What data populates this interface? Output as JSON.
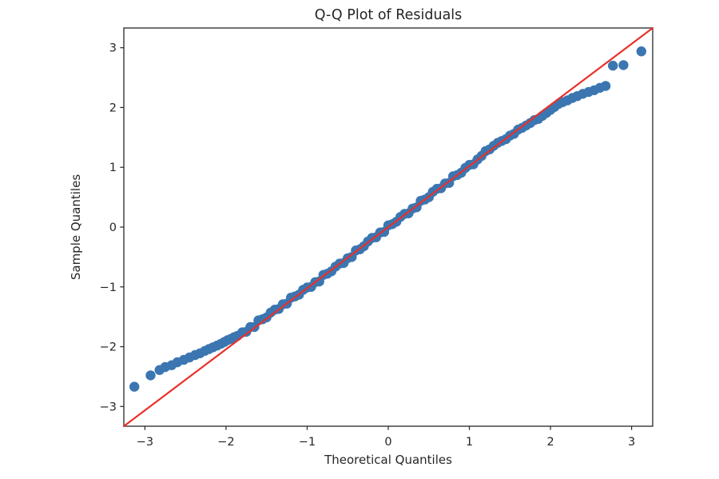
{
  "chart_data": {
    "type": "scatter",
    "title": "Q-Q Plot of Residuals",
    "xlabel": "Theoretical Quantiles",
    "ylabel": "Sample Quantiles",
    "xlim": [
      -3.26,
      3.26
    ],
    "ylim": [
      -3.33,
      3.33
    ],
    "x_ticks": [
      -3,
      -2,
      -1,
      0,
      1,
      2,
      3
    ],
    "x_tick_labels": [
      "−3",
      "−2",
      "−1",
      "0",
      "1",
      "2",
      "3"
    ],
    "y_ticks": [
      -3,
      -2,
      -1,
      0,
      1,
      2,
      3
    ],
    "y_tick_labels": [
      "−3",
      "−2",
      "−1",
      "0",
      "1",
      "2",
      "3"
    ],
    "grid": false,
    "legend": "none",
    "colors": {
      "scatter": "#3b76b1",
      "reference_line": "#e8312b",
      "text": "#262626",
      "spine": "#262626",
      "background": "#ffffff"
    },
    "series": [
      {
        "name": "residual-sample-quantiles",
        "type": "scatter",
        "marker": "circle",
        "color": "#3b76b1",
        "points": [
          [
            -3.13,
            -2.67
          ],
          [
            -2.93,
            -2.48
          ],
          [
            -2.82,
            -2.39
          ],
          [
            -2.75,
            -2.34
          ],
          [
            -2.67,
            -2.31
          ],
          [
            -2.6,
            -2.26
          ],
          [
            -2.52,
            -2.22
          ],
          [
            -2.45,
            -2.18
          ],
          [
            -2.38,
            -2.14
          ],
          [
            -2.32,
            -2.11
          ],
          [
            -2.26,
            -2.07
          ],
          [
            -2.21,
            -2.04
          ],
          [
            -2.16,
            -2.01
          ],
          [
            -2.11,
            -1.98
          ],
          [
            -2.06,
            -1.95
          ],
          [
            -2.02,
            -1.92
          ],
          [
            -1.98,
            -1.89
          ],
          [
            -1.94,
            -1.87
          ],
          [
            -1.9,
            -1.84
          ],
          [
            -1.86,
            -1.82
          ],
          [
            -1.8,
            -1.76
          ],
          [
            -1.75,
            -1.75
          ],
          [
            -1.7,
            -1.67
          ],
          [
            -1.65,
            -1.67
          ],
          [
            -1.6,
            -1.56
          ],
          [
            -1.55,
            -1.54
          ],
          [
            -1.5,
            -1.51
          ],
          [
            -1.45,
            -1.43
          ],
          [
            -1.4,
            -1.38
          ],
          [
            -1.35,
            -1.37
          ],
          [
            -1.3,
            -1.29
          ],
          [
            -1.25,
            -1.28
          ],
          [
            -1.2,
            -1.18
          ],
          [
            -1.15,
            -1.16
          ],
          [
            -1.1,
            -1.13
          ],
          [
            -1.05,
            -1.05
          ],
          [
            -1.0,
            -1.01
          ],
          [
            -0.95,
            -1.0
          ],
          [
            -0.9,
            -0.92
          ],
          [
            -0.85,
            -0.91
          ],
          [
            -0.8,
            -0.8
          ],
          [
            -0.75,
            -0.78
          ],
          [
            -0.7,
            -0.74
          ],
          [
            -0.65,
            -0.66
          ],
          [
            -0.6,
            -0.61
          ],
          [
            -0.55,
            -0.6
          ],
          [
            -0.5,
            -0.52
          ],
          [
            -0.45,
            -0.5
          ],
          [
            -0.4,
            -0.39
          ],
          [
            -0.35,
            -0.37
          ],
          [
            -0.3,
            -0.32
          ],
          [
            -0.25,
            -0.24
          ],
          [
            -0.2,
            -0.18
          ],
          [
            -0.15,
            -0.17
          ],
          [
            -0.1,
            -0.09
          ],
          [
            -0.05,
            -0.08
          ],
          [
            0.0,
            0.03
          ],
          [
            0.05,
            0.05
          ],
          [
            0.1,
            0.09
          ],
          [
            0.15,
            0.17
          ],
          [
            0.2,
            0.22
          ],
          [
            0.25,
            0.23
          ],
          [
            0.3,
            0.31
          ],
          [
            0.35,
            0.33
          ],
          [
            0.4,
            0.44
          ],
          [
            0.45,
            0.46
          ],
          [
            0.5,
            0.5
          ],
          [
            0.55,
            0.59
          ],
          [
            0.6,
            0.64
          ],
          [
            0.65,
            0.65
          ],
          [
            0.7,
            0.73
          ],
          [
            0.75,
            0.74
          ],
          [
            0.8,
            0.85
          ],
          [
            0.85,
            0.87
          ],
          [
            0.9,
            0.91
          ],
          [
            0.95,
            0.99
          ],
          [
            1.0,
            1.04
          ],
          [
            1.05,
            1.05
          ],
          [
            1.1,
            1.13
          ],
          [
            1.15,
            1.19
          ],
          [
            1.2,
            1.27
          ],
          [
            1.25,
            1.3
          ],
          [
            1.3,
            1.36
          ],
          [
            1.35,
            1.41
          ],
          [
            1.4,
            1.44
          ],
          [
            1.45,
            1.47
          ],
          [
            1.5,
            1.53
          ],
          [
            1.55,
            1.56
          ],
          [
            1.6,
            1.63
          ],
          [
            1.65,
            1.66
          ],
          [
            1.7,
            1.7
          ],
          [
            1.75,
            1.74
          ],
          [
            1.8,
            1.79
          ],
          [
            1.85,
            1.81
          ],
          [
            1.9,
            1.86
          ],
          [
            1.95,
            1.91
          ],
          [
            2.0,
            1.96
          ],
          [
            2.05,
            2.01
          ],
          [
            2.1,
            2.06
          ],
          [
            2.15,
            2.09
          ],
          [
            2.21,
            2.12
          ],
          [
            2.27,
            2.16
          ],
          [
            2.33,
            2.19
          ],
          [
            2.4,
            2.23
          ],
          [
            2.47,
            2.26
          ],
          [
            2.54,
            2.29
          ],
          [
            2.61,
            2.33
          ],
          [
            2.68,
            2.36
          ],
          [
            2.77,
            2.7
          ],
          [
            2.9,
            2.71
          ],
          [
            3.12,
            2.94
          ]
        ]
      },
      {
        "name": "reference-line",
        "type": "line",
        "description": "45-degree y = x reference line",
        "color": "#e8312b",
        "width": 2.2,
        "points": [
          [
            -3.26,
            -3.33
          ],
          [
            3.26,
            3.33
          ]
        ]
      }
    ]
  }
}
